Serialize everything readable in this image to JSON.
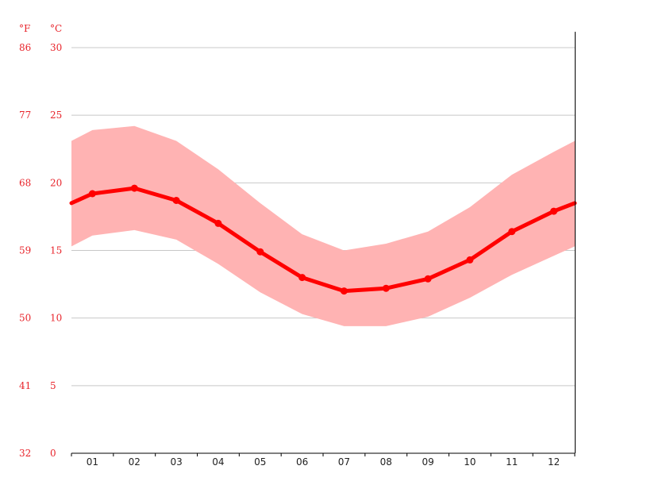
{
  "chart_data": {
    "type": "line",
    "title": "",
    "xlabel": "",
    "ylabel": "",
    "units": {
      "fahrenheit": "°F",
      "celsius": "°C"
    },
    "categories": [
      "01",
      "02",
      "03",
      "04",
      "05",
      "06",
      "07",
      "08",
      "09",
      "10",
      "11",
      "12"
    ],
    "x_range": [
      0.5,
      12.5
    ],
    "ylim": [
      0,
      30
    ],
    "y_ticks_c": [
      "0",
      "5",
      "10",
      "15",
      "20",
      "25",
      "30"
    ],
    "y_ticks_f": [
      "32",
      "41",
      "50",
      "59",
      "68",
      "77",
      "86"
    ],
    "grid": true,
    "series": [
      {
        "kind": "line",
        "values": [
          19.2,
          19.6,
          18.7,
          17.0,
          14.9,
          13.0,
          12.0,
          12.2,
          12.9,
          14.3,
          16.4,
          17.9
        ],
        "edge_values": [
          18.5,
          18.5
        ],
        "color": "#ff0000"
      },
      {
        "kind": "band",
        "upper": [
          23.9,
          24.2,
          23.1,
          21.0,
          18.5,
          16.2,
          15.0,
          15.5,
          16.4,
          18.2,
          20.6,
          22.3
        ],
        "lower": [
          16.1,
          16.5,
          15.8,
          14.0,
          11.9,
          10.3,
          9.4,
          9.4,
          10.1,
          11.5,
          13.2,
          14.6
        ],
        "edge_upper": [
          23.1,
          23.1
        ],
        "edge_lower": [
          15.3,
          15.3
        ],
        "color": "#ffb3b3"
      }
    ]
  }
}
